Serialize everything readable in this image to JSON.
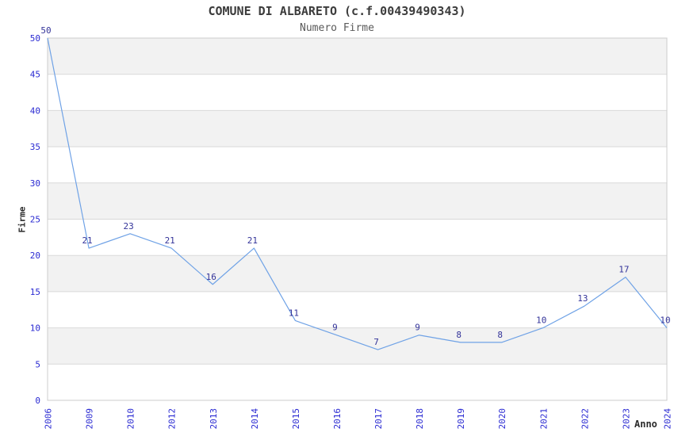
{
  "chart_data": {
    "type": "line",
    "title": "COMUNE DI ALBARETO (c.f.00439490343)",
    "subtitle": "Numero Firme",
    "xlabel": "Anno",
    "ylabel": "Firme",
    "categories": [
      "2006",
      "2009",
      "2010",
      "2012",
      "2013",
      "2014",
      "2015",
      "2016",
      "2017",
      "2018",
      "2019",
      "2020",
      "2021",
      "2022",
      "2023",
      "2024"
    ],
    "values": [
      50,
      21,
      23,
      21,
      16,
      21,
      11,
      9,
      7,
      9,
      8,
      8,
      10,
      13,
      17,
      10
    ],
    "ylim": [
      0,
      50
    ],
    "yticks": [
      0,
      5,
      10,
      15,
      20,
      25,
      30,
      35,
      40,
      45,
      50
    ],
    "grid": true,
    "legend": "none",
    "band_pattern": "alternating-horizontal",
    "colors": {
      "line": "#6fa2e6",
      "point_label": "#333399",
      "tick_label": "#2a2ad2",
      "band_gray": "#f2f2f2",
      "gridline": "#d9d9d9",
      "plot_border": "#cccccc",
      "title": "#3c3c3c",
      "axis_title": "#2b2b2b",
      "background": "#ffffff"
    }
  }
}
